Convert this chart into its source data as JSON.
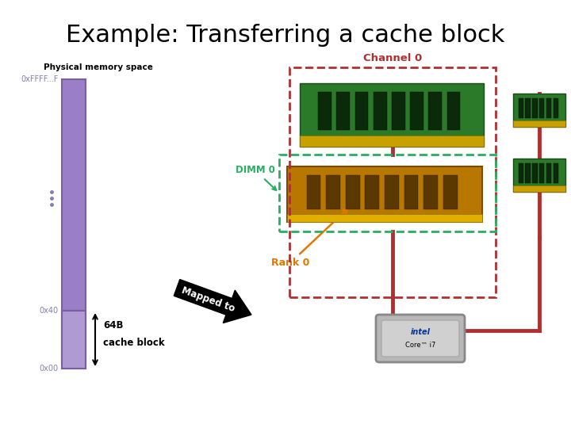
{
  "title": "Example: Transferring a cache block",
  "title_fontsize": 22,
  "bg_color": "#ffffff",
  "phys_mem_label": "Physical memory space",
  "bar_color": "#9b7ec8",
  "bar_outline": "#7a5fa0",
  "highlight_color": "#b09ad4",
  "highlight_outline": "#7a5fa0",
  "label_color": "#8080b0",
  "channel_color": "#b03030",
  "dimm_color": "#27ae60",
  "rank_color": "#e07800",
  "mapped_text": "Mapped to",
  "channel_label": "Channel 0",
  "dimm_label": "DIMM 0",
  "rank_label": "Rank 0"
}
